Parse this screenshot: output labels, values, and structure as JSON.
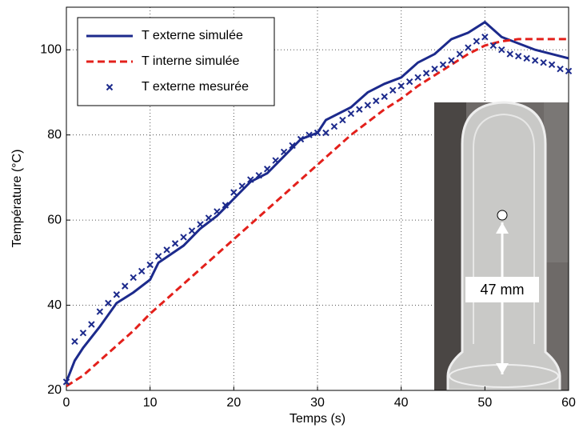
{
  "chart_data": {
    "type": "line",
    "x_label": "Temps (s)",
    "y_label": "Température (°C)",
    "xlim": [
      0,
      60
    ],
    "ylim": [
      20,
      110
    ],
    "xticks": [
      0,
      10,
      20,
      30,
      40,
      50,
      60
    ],
    "yticks": [
      20,
      40,
      60,
      80,
      100
    ],
    "grid": true,
    "legend": "upper-left",
    "annotations": [
      "47 mm"
    ],
    "series": [
      {
        "name": "T externe simulée",
        "color": "#1c2a8c",
        "style": "solid",
        "x": [
          0,
          1,
          2,
          4,
          6,
          8,
          10,
          11,
          14,
          16,
          18,
          19,
          20,
          22,
          24,
          26,
          28,
          30,
          31,
          34,
          36,
          38,
          40,
          42,
          44,
          46,
          48,
          50,
          52,
          54,
          56,
          58,
          60
        ],
        "values": [
          22,
          27,
          30,
          35,
          40.5,
          43,
          46,
          50,
          54,
          58,
          61,
          63,
          65,
          69,
          71,
          75,
          79,
          80.5,
          83.5,
          86.5,
          90,
          92,
          93.5,
          97,
          99,
          102.5,
          104,
          106.5,
          103,
          101.5,
          100,
          99,
          98
        ]
      },
      {
        "name": "T interne simulée",
        "color": "#e3201b",
        "style": "dashed",
        "x": [
          0,
          2,
          4,
          6,
          8,
          10,
          12,
          14,
          16,
          18,
          20,
          22,
          24,
          26,
          28,
          30,
          32,
          34,
          36,
          38,
          40,
          42,
          44,
          46,
          48,
          50,
          52,
          54,
          56,
          58,
          60
        ],
        "values": [
          21,
          23.5,
          27,
          30.5,
          34,
          38,
          41.5,
          45,
          48.5,
          52,
          55.5,
          59,
          62.5,
          66,
          69.5,
          73,
          76.5,
          80,
          83,
          86,
          88.5,
          91.5,
          94,
          96.5,
          99,
          101,
          102,
          102.5,
          102.5,
          102.5,
          102.5
        ]
      },
      {
        "name": "T externe mesurée",
        "color": "#1c2a8c",
        "style": "marker",
        "x": [
          0,
          1,
          2,
          3,
          4,
          5,
          6,
          7,
          8,
          9,
          10,
          11,
          12,
          13,
          14,
          15,
          16,
          17,
          18,
          19,
          20,
          21,
          22,
          23,
          24,
          25,
          26,
          27,
          28,
          29,
          30,
          31,
          32,
          33,
          34,
          35,
          36,
          37,
          38,
          39,
          40,
          41,
          42,
          43,
          44,
          45,
          46,
          47,
          48,
          49,
          50,
          51,
          52,
          53,
          54,
          55,
          56,
          57,
          58,
          59,
          60
        ],
        "values": [
          22,
          31.5,
          33.5,
          35.5,
          38.5,
          40.5,
          42.5,
          44.5,
          46.5,
          48,
          49.5,
          51.5,
          53,
          54.5,
          56,
          57.5,
          59,
          60.5,
          62,
          63.5,
          66.5,
          68,
          69.5,
          70.5,
          72,
          74,
          76,
          77.5,
          79,
          80,
          80.5,
          80.5,
          82,
          83.5,
          85,
          86,
          87,
          88,
          89,
          90.5,
          91.5,
          92.5,
          93.5,
          94.5,
          95.5,
          96.5,
          97.5,
          99,
          100.5,
          102,
          103,
          101,
          100,
          99,
          98.5,
          98,
          97.5,
          97,
          96.5,
          95.5,
          95
        ]
      }
    ]
  }
}
